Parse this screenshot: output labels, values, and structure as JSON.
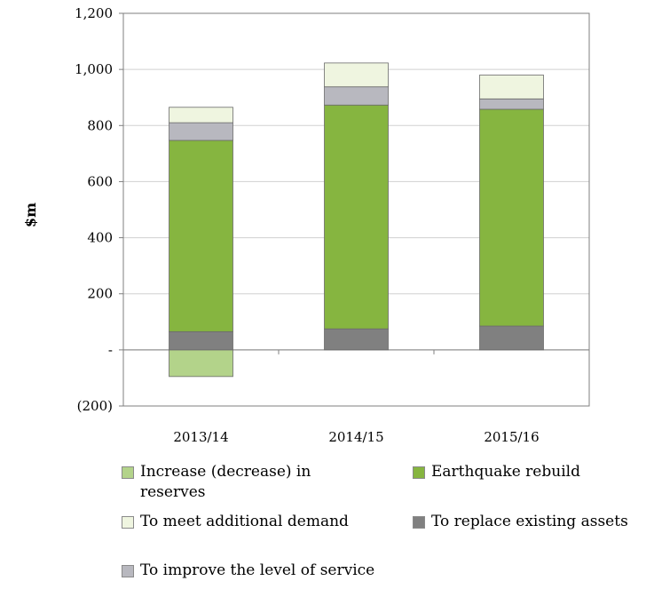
{
  "chart_data": {
    "type": "bar",
    "stacked": true,
    "categories": [
      "2013/14",
      "2014/15",
      "2015/16"
    ],
    "ylabel": "$m",
    "ylim": [
      -200,
      1200
    ],
    "yticks": [
      {
        "value": 1200,
        "label": "1,200"
      },
      {
        "value": 1000,
        "label": "1,000"
      },
      {
        "value": 800,
        "label": "800"
      },
      {
        "value": 600,
        "label": "600"
      },
      {
        "value": 400,
        "label": "400"
      },
      {
        "value": 200,
        "label": "200"
      },
      {
        "value": 0,
        "label": "-"
      },
      {
        "value": -200,
        "label": "(200)"
      }
    ],
    "grid": true,
    "legend_position": "bottom",
    "series": [
      {
        "name": "Increase (decrease) in reserves",
        "color": "#b3d38a",
        "values": [
          -95,
          0,
          0
        ]
      },
      {
        "name": "To replace existing assets",
        "color": "#808080",
        "values": [
          65,
          75,
          85
        ]
      },
      {
        "name": "Earthquake rebuild",
        "color": "#86b540",
        "values": [
          682,
          798,
          773
        ]
      },
      {
        "name": "To improve the level of service",
        "color": "#b8b8bf",
        "values": [
          63,
          65,
          37
        ]
      },
      {
        "name": "To meet additional demand",
        "color": "#eff5e0",
        "values": [
          55,
          85,
          85
        ]
      }
    ]
  },
  "legend": {
    "items": [
      {
        "label": "Increase (decrease) in reserves",
        "color": "#b3d38a"
      },
      {
        "label": "Earthquake rebuild",
        "color": "#86b540"
      },
      {
        "label": "To meet additional demand",
        "color": "#eff5e0"
      },
      {
        "label": "To replace existing assets",
        "color": "#808080"
      },
      {
        "label": "To improve the level of service",
        "color": "#b8b8bf"
      }
    ]
  }
}
